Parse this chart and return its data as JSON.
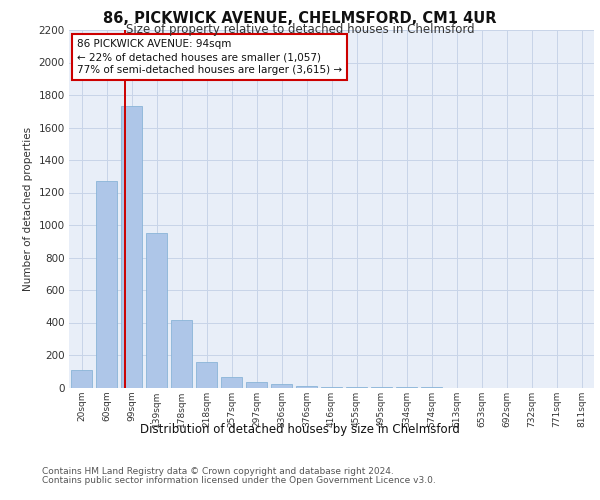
{
  "title": "86, PICKWICK AVENUE, CHELMSFORD, CM1 4UR",
  "subtitle": "Size of property relative to detached houses in Chelmsford",
  "xlabel": "Distribution of detached houses by size in Chelmsford",
  "ylabel": "Number of detached properties",
  "bin_labels": [
    "20sqm",
    "60sqm",
    "99sqm",
    "139sqm",
    "178sqm",
    "218sqm",
    "257sqm",
    "297sqm",
    "336sqm",
    "376sqm",
    "416sqm",
    "455sqm",
    "495sqm",
    "534sqm",
    "574sqm",
    "613sqm",
    "653sqm",
    "692sqm",
    "732sqm",
    "771sqm",
    "811sqm"
  ],
  "bar_values": [
    110,
    1270,
    1730,
    950,
    415,
    155,
    65,
    35,
    20,
    10,
    5,
    2,
    1,
    1,
    1,
    0,
    0,
    0,
    0,
    0,
    0
  ],
  "bar_color": "#aec6e8",
  "bar_edge_color": "#8ab4d8",
  "grid_color": "#c8d4e8",
  "bg_color": "#e8eef8",
  "vline_x": 1.72,
  "vline_color": "#cc0000",
  "annotation_text": "86 PICKWICK AVENUE: 94sqm\n← 22% of detached houses are smaller (1,057)\n77% of semi-detached houses are larger (3,615) →",
  "annotation_box_color": "#ffffff",
  "annotation_box_edge": "#cc0000",
  "ylim": [
    0,
    2200
  ],
  "yticks": [
    0,
    200,
    400,
    600,
    800,
    1000,
    1200,
    1400,
    1600,
    1800,
    2000,
    2200
  ],
  "footer_line1": "Contains HM Land Registry data © Crown copyright and database right 2024.",
  "footer_line2": "Contains public sector information licensed under the Open Government Licence v3.0.",
  "title_fontsize": 10.5,
  "subtitle_fontsize": 8.5,
  "ylabel_fontsize": 7.5,
  "xlabel_fontsize": 8.5,
  "ytick_fontsize": 7.5,
  "xtick_fontsize": 6.5,
  "footer_fontsize": 6.5,
  "ann_fontsize": 7.5
}
